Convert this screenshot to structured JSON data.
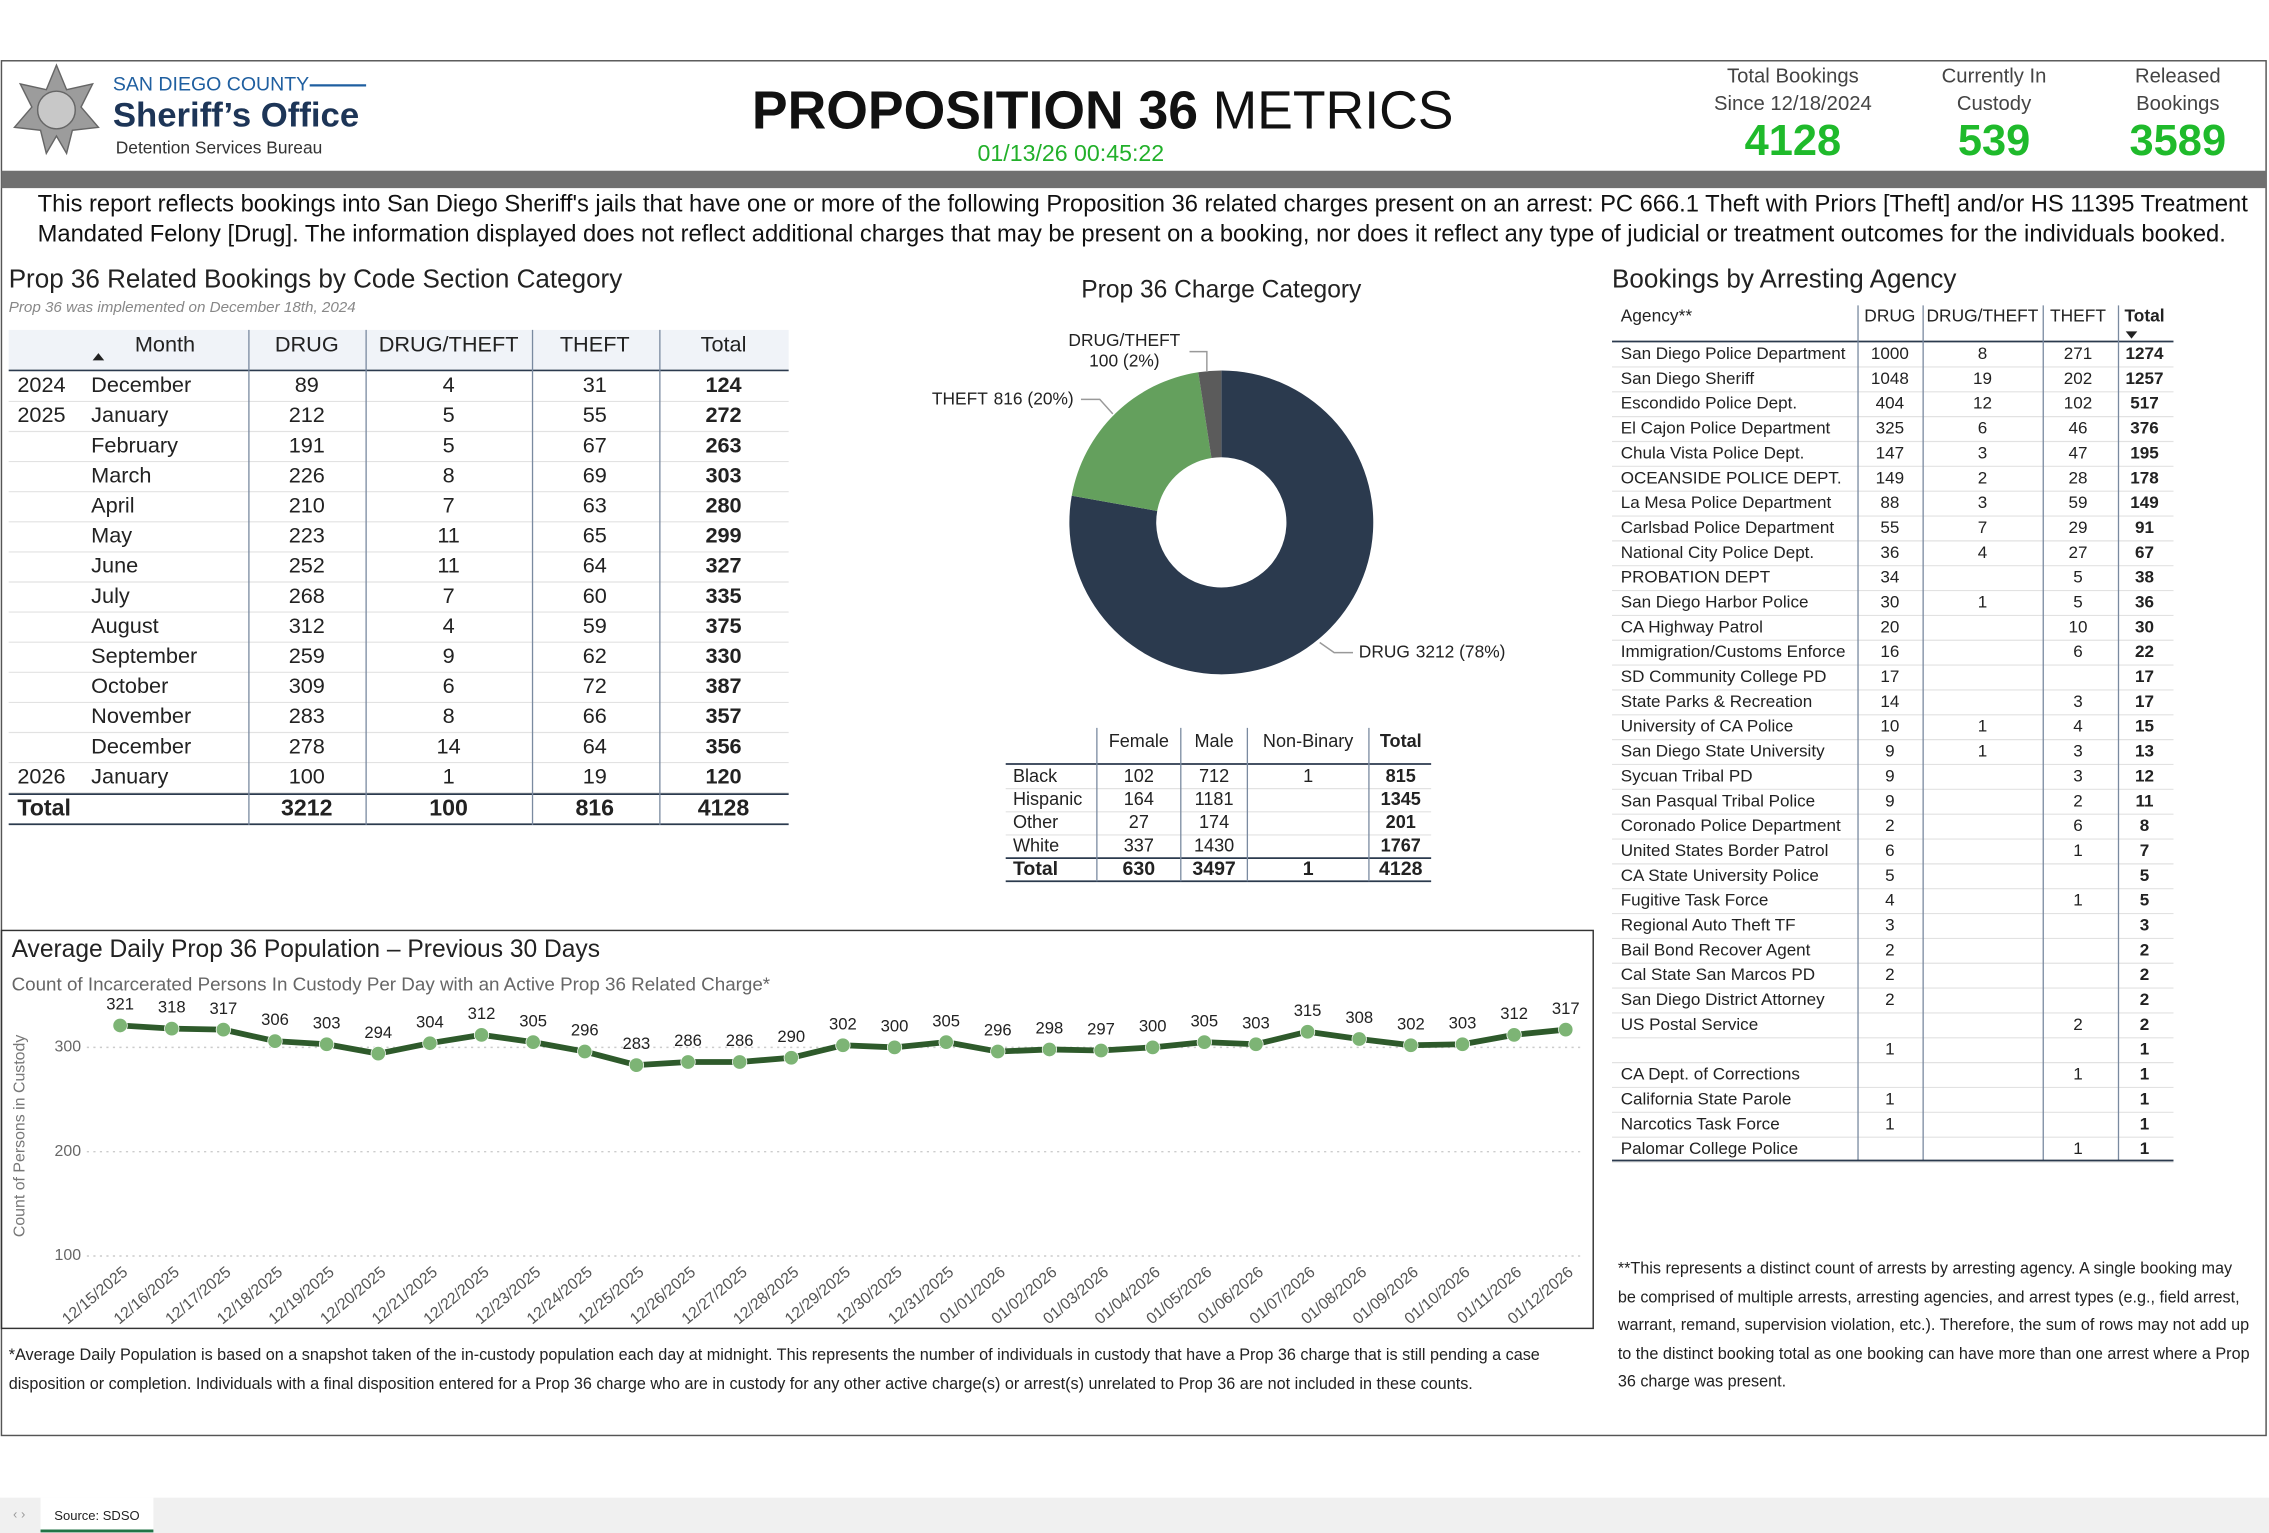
{
  "header": {
    "agency": "SAN DIEGO COUNTY",
    "office": "Sheriff’s Office",
    "bureau": "Detention Services Bureau",
    "title_bold": "PROPOSITION 36",
    "title_light": "METRICS",
    "timestamp": "01/13/26 00:45:22"
  },
  "kpis": [
    {
      "label": "Total Bookings Since 12/18/2024",
      "value": 4128
    },
    {
      "label": "Currently In Custody",
      "value": 539
    },
    {
      "label": "Released Bookings",
      "value": 3589
    }
  ],
  "description": "This report reflects bookings into San Diego Sheriff's jails that have one or more of the following Proposition 36 related charges present on an arrest: PC 666.1 Theft with Priors [Theft] and/or HS 11395 Treatment Mandated Felony [Drug]. The information displayed does not reflect additional charges that may be present on a booking, nor does it reflect any type of judicial or treatment outcomes for the individuals booked.",
  "monthly_table": {
    "title": "Prop 36 Related Bookings by Code Section Category",
    "subtitle": "Prop 36 was implemented on December 18th, 2024",
    "columns": [
      "Month",
      "DRUG",
      "DRUG/THEFT",
      "THEFT",
      "Total"
    ],
    "rows": [
      [
        2024,
        "December",
        89,
        4,
        31,
        124
      ],
      [
        2025,
        "January",
        212,
        5,
        55,
        272
      ],
      [
        null,
        "February",
        191,
        5,
        67,
        263
      ],
      [
        null,
        "March",
        226,
        8,
        69,
        303
      ],
      [
        null,
        "April",
        210,
        7,
        63,
        280
      ],
      [
        null,
        "May",
        223,
        11,
        65,
        299
      ],
      [
        null,
        "June",
        252,
        11,
        64,
        327
      ],
      [
        null,
        "July",
        268,
        7,
        60,
        335
      ],
      [
        null,
        "August",
        312,
        4,
        59,
        375
      ],
      [
        null,
        "September",
        259,
        9,
        62,
        330
      ],
      [
        null,
        "October",
        309,
        6,
        72,
        387
      ],
      [
        null,
        "November",
        283,
        8,
        66,
        357
      ],
      [
        null,
        "December",
        278,
        14,
        64,
        356
      ],
      [
        2026,
        "January",
        100,
        1,
        19,
        120
      ]
    ],
    "total": [
      "Total",
      3212,
      100,
      816,
      4128
    ]
  },
  "chart_data": [
    {
      "type": "donut",
      "title": "Prop 36 Charge Category",
      "categories": [
        "DRUG",
        "THEFT",
        "DRUG/THEFT"
      ],
      "values": [
        3212,
        816,
        100
      ],
      "value_labels": [
        "3212 (78%)",
        "816 (20%)",
        "100 (2%)"
      ],
      "colors": [
        "#2b3a4e",
        "#64a05d",
        "#5b5b5b"
      ]
    },
    {
      "type": "line",
      "title": "Average Daily Prop 36 Population – Previous 30 Days",
      "subtitle": "Count of Incarcerated Persons In Custody Per Day with an Active Prop 36 Related Charge*",
      "y_label": "Count of Persons in Custody",
      "x": [
        "12/15/2025",
        "12/16/2025",
        "12/17/2025",
        "12/18/2025",
        "12/19/2025",
        "12/20/2025",
        "12/21/2025",
        "12/22/2025",
        "12/23/2025",
        "12/24/2025",
        "12/25/2025",
        "12/26/2025",
        "12/27/2025",
        "12/28/2025",
        "12/29/2025",
        "12/30/2025",
        "12/31/2025",
        "01/01/2026",
        "01/02/2026",
        "01/03/2026",
        "01/04/2026",
        "01/05/2026",
        "01/06/2026",
        "01/07/2026",
        "01/08/2026",
        "01/09/2026",
        "01/10/2026",
        "01/11/2026",
        "01/12/2026"
      ],
      "values": [
        321,
        318,
        317,
        306,
        303,
        294,
        304,
        312,
        305,
        296,
        283,
        286,
        286,
        290,
        302,
        300,
        305,
        296,
        298,
        297,
        300,
        305,
        303,
        315,
        308,
        302,
        303,
        312,
        317
      ],
      "color": "#2e5a2b",
      "marker_color": "#7db475",
      "ylim": [
        100,
        333
      ],
      "yticks": [
        100,
        200,
        300
      ],
      "grid": true
    }
  ],
  "gender_table": {
    "columns": [
      "Female",
      "Male",
      "Non-Binary",
      "Total"
    ],
    "rows": [
      [
        "Black",
        102,
        712,
        1,
        815
      ],
      [
        "Hispanic",
        164,
        1181,
        null,
        1345
      ],
      [
        "Other",
        27,
        174,
        null,
        201
      ],
      [
        "White",
        337,
        1430,
        null,
        1767
      ]
    ],
    "total": [
      "Total",
      630,
      3497,
      1,
      4128
    ]
  },
  "agency_table": {
    "title": "Bookings by Arresting Agency",
    "columns": [
      "Agency**",
      "DRUG",
      "DRUG/THEFT",
      "THEFT",
      "Total"
    ],
    "rows": [
      [
        "San Diego Police Department",
        1000,
        8,
        271,
        1274
      ],
      [
        "San Diego Sheriff",
        1048,
        19,
        202,
        1257
      ],
      [
        "Escondido Police Dept.",
        404,
        12,
        102,
        517
      ],
      [
        "El Cajon Police Department",
        325,
        6,
        46,
        376
      ],
      [
        "Chula Vista Police Dept.",
        147,
        3,
        47,
        195
      ],
      [
        "OCEANSIDE POLICE DEPT.",
        149,
        2,
        28,
        178
      ],
      [
        "La Mesa Police Department",
        88,
        3,
        59,
        149
      ],
      [
        "Carlsbad Police Department",
        55,
        7,
        29,
        91
      ],
      [
        "National City Police Dept.",
        36,
        4,
        27,
        67
      ],
      [
        "PROBATION DEPT",
        34,
        null,
        5,
        38
      ],
      [
        "San Diego Harbor Police",
        30,
        1,
        5,
        36
      ],
      [
        "CA Highway Patrol",
        20,
        null,
        10,
        30
      ],
      [
        "Immigration/Customs Enforce",
        16,
        null,
        6,
        22
      ],
      [
        "SD Community College PD",
        17,
        null,
        null,
        17
      ],
      [
        "State Parks & Recreation",
        14,
        null,
        3,
        17
      ],
      [
        "University of CA Police",
        10,
        1,
        4,
        15
      ],
      [
        "San Diego State University",
        9,
        1,
        3,
        13
      ],
      [
        "Sycuan Tribal PD",
        9,
        null,
        3,
        12
      ],
      [
        "San Pasqual Tribal Police",
        9,
        null,
        2,
        11
      ],
      [
        "Coronado Police Department",
        2,
        null,
        6,
        8
      ],
      [
        "United States Border Patrol",
        6,
        null,
        1,
        7
      ],
      [
        "CA State University Police",
        5,
        null,
        null,
        5
      ],
      [
        "Fugitive Task Force",
        4,
        null,
        1,
        5
      ],
      [
        "Regional Auto Theft TF",
        3,
        null,
        null,
        3
      ],
      [
        "Bail Bond Recover Agent",
        2,
        null,
        null,
        2
      ],
      [
        "Cal State San Marcos PD",
        2,
        null,
        null,
        2
      ],
      [
        "San Diego District Attorney",
        2,
        null,
        null,
        2
      ],
      [
        "US Postal Service",
        null,
        null,
        2,
        2
      ],
      [
        null,
        1,
        null,
        null,
        1
      ],
      [
        "CA Dept. of Corrections",
        null,
        null,
        1,
        1
      ],
      [
        "California State Parole",
        1,
        null,
        null,
        1
      ],
      [
        "Narcotics Task Force",
        1,
        null,
        null,
        1
      ],
      [
        "Palomar College Police",
        null,
        null,
        1,
        1
      ]
    ],
    "note": "**This represents a distinct count of arrests by arresting agency. A single booking may be comprised of multiple arrests, arresting agencies, and arrest types (e.g., field arrest, warrant, remand, supervision violation, etc.). Therefore, the sum of rows may not add up to the distinct booking total as one booking can have more than one arrest where a Prop 36 charge was present."
  },
  "footnote": "*Average Daily Population is based on a snapshot taken of the in-custody population each day at midnight. This represents the number of individuals in custody that have a Prop 36 charge that is still pending a case disposition or completion. Individuals with a final disposition entered for a Prop 36 charge who are in custody for any other active charge(s) or arrest(s) unrelated to Prop 36 are not included in these counts.",
  "source_tab": "Source: SDSO"
}
